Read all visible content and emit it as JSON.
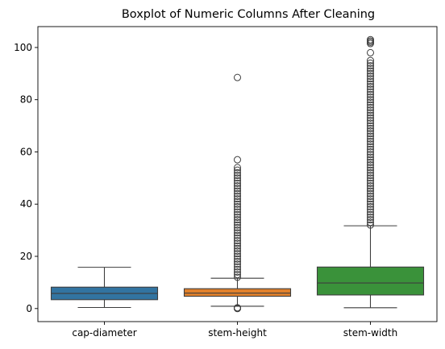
{
  "chart_data": {
    "type": "boxplot",
    "title": "Boxplot of Numeric Columns After Cleaning",
    "xlabel": "",
    "ylabel": "",
    "ylim": [
      -5,
      108
    ],
    "yticks": [
      0,
      20,
      40,
      60,
      80,
      100
    ],
    "grid": false,
    "categories": [
      "cap-diameter",
      "stem-height",
      "stem-width"
    ],
    "colors": [
      "#3274a1",
      "#e1812c",
      "#3a923a"
    ],
    "series": [
      {
        "category": "cap-diameter",
        "whisker_low": 0.4,
        "q1": 3.4,
        "median": 5.8,
        "q3": 8.2,
        "whisker_high": 15.8,
        "outliers": []
      },
      {
        "category": "stem-height",
        "whisker_low": 0.9,
        "q1": 4.7,
        "median": 5.9,
        "q3": 7.6,
        "whisker_high": 11.6,
        "outliers": [
          0,
          0.1,
          0.2,
          0.3,
          12,
          13,
          14,
          15,
          16,
          17,
          18,
          19,
          20,
          21,
          22,
          23,
          24,
          25,
          26,
          27,
          28,
          29,
          30,
          31,
          32,
          33,
          34,
          35,
          36,
          37,
          38,
          39,
          40,
          41,
          42,
          43,
          44,
          45,
          46,
          47,
          48,
          49,
          50,
          51,
          52,
          53,
          54,
          57,
          88.5
        ]
      },
      {
        "category": "stem-width",
        "whisker_low": 0.3,
        "q1": 5.2,
        "median": 9.8,
        "q3": 15.9,
        "whisker_high": 31.7,
        "outliers": [
          32,
          33,
          34,
          35,
          36,
          37,
          38,
          39,
          40,
          41,
          42,
          43,
          44,
          45,
          46,
          47,
          48,
          49,
          50,
          51,
          52,
          53,
          54,
          55,
          56,
          57,
          58,
          59,
          60,
          61,
          62,
          63,
          64,
          65,
          66,
          67,
          68,
          69,
          70,
          71,
          72,
          73,
          74,
          75,
          76,
          77,
          78,
          79,
          80,
          81,
          82,
          83,
          84,
          85,
          86,
          87,
          88,
          89,
          90,
          91,
          92,
          93,
          94,
          95,
          98,
          101.5,
          102,
          102.5,
          103
        ]
      }
    ]
  }
}
